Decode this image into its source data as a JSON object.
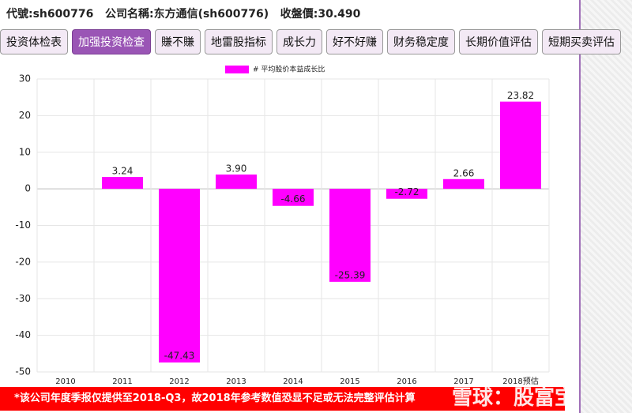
{
  "header": {
    "text": "代號:sh600776   公司名稱:东方通信(sh600776)   收盤價:30.490"
  },
  "tabs": [
    "投资体检表",
    "加强投资检查",
    "賺不賺",
    "地雷股指标",
    "成长力",
    "好不好赚",
    "财务稳定度",
    "长期价值评估",
    "短期买卖评估"
  ],
  "chart_data": {
    "type": "bar",
    "series": [
      {
        "name": "# 平均股价本益成长比",
        "color": "#ff00ff",
        "values": [
          null,
          3.24,
          -47.43,
          3.9,
          -4.66,
          -25.39,
          -2.72,
          2.66,
          23.82
        ],
        "value_labels": [
          null,
          "3.24",
          "-47.43",
          "3.90",
          "-4.66",
          "-25.39",
          "-2.72",
          "2.66",
          "23.82"
        ]
      }
    ],
    "categories": [
      "2010",
      "2011",
      "2012",
      "2013",
      "2014",
      "2015",
      "2016",
      "2017",
      "2018预估"
    ],
    "ylim": [
      -50,
      30
    ],
    "yticks": [
      -50,
      -40,
      -30,
      -20,
      -10,
      0,
      10,
      20,
      30
    ],
    "grid": true,
    "legend": "top"
  },
  "note": "*该公司年度季报仅提供至2018-Q3，故2018年参考数值恐显不足或无法完整评估计算",
  "watermark": "雪球：股富宝"
}
